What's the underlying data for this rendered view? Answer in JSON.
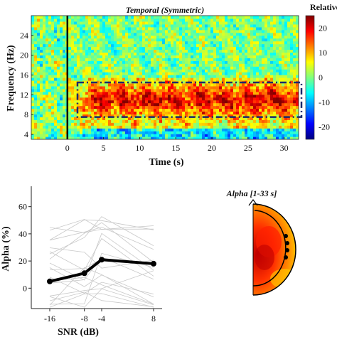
{
  "chart_data": [
    {
      "type": "heatmap",
      "title": "Temporal (Symmetric)",
      "xlabel": "Time (s)",
      "ylabel": "Frequency (Hz)",
      "x_ticks": [
        0,
        5,
        10,
        15,
        20,
        25,
        30
      ],
      "y_ticks": [
        4,
        8,
        12,
        16,
        20,
        24
      ],
      "xlim": [
        -5,
        32
      ],
      "ylim": [
        3,
        28
      ],
      "colorbar": {
        "label": "Relative (%)",
        "ticks": [
          20,
          10,
          0,
          -10,
          -20
        ],
        "range": [
          -25,
          25
        ],
        "colormap": "jet"
      },
      "marker_line_x": 0,
      "highlight_box": {
        "x": [
          1,
          32
        ],
        "y": [
          7.5,
          14.5
        ]
      },
      "description_bands": [
        {
          "freq_range": [
            7,
            15
          ],
          "time_range": [
            1,
            32
          ],
          "value": 18
        }
      ]
    },
    {
      "type": "line",
      "xlabel": "SNR (dB)",
      "ylabel": "Alpha (%)",
      "x_ticks": [
        -16,
        -8,
        -4,
        8
      ],
      "y_ticks": [
        0,
        20,
        40,
        60
      ],
      "ylim": [
        -15,
        75
      ],
      "series": [
        {
          "values": [
            5,
            11,
            21,
            18
          ]
        }
      ],
      "x": [
        -16,
        -8,
        -4,
        8
      ]
    },
    {
      "type": "heatmap",
      "title": "Alpha [1-33 s]",
      "description": "topographic scalp map, right hemisphere"
    }
  ]
}
